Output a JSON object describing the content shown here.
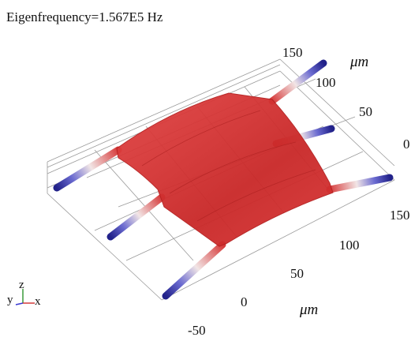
{
  "header": {
    "title": "Eigenfrequency=1.567E5 Hz"
  },
  "axes": {
    "upper": {
      "unit": "μm",
      "ticks": [
        "150",
        "100",
        "50",
        "0"
      ]
    },
    "lower": {
      "unit": "μm",
      "ticks": [
        "150",
        "100",
        "50",
        "0",
        "-50"
      ]
    }
  },
  "triad": {
    "y": "y",
    "z": "z",
    "x": "x"
  }
}
